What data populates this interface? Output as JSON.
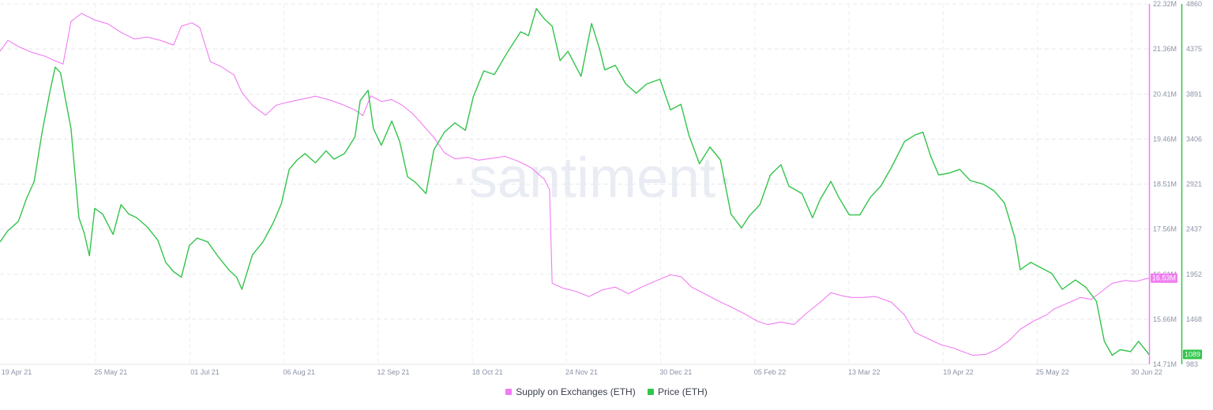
{
  "chart_data": {
    "type": "line",
    "title": "",
    "watermark": "·santiment·",
    "x_tick_labels": [
      "19 Apr 21",
      "25 May 21",
      "01 Jul 21",
      "06 Aug 21",
      "12 Sep 21",
      "18 Oct 21",
      "24 Nov 21",
      "30 Dec 21",
      "05 Feb 22",
      "13 Mar 22",
      "19 Apr 22",
      "25 May 22",
      "30 Jun 22"
    ],
    "x_range": [
      "2021-04-19",
      "2022-06-30"
    ],
    "axes": {
      "left_supply": {
        "series": "Supply on Exchanges (ETH)",
        "tick_labels": [
          "22.32M",
          "21.36M",
          "20.41M",
          "19.46M",
          "18.51M",
          "17.56M",
          "16.61M",
          "15.66M",
          "14.71M"
        ],
        "range": [
          14.71,
          22.32
        ],
        "unit": "M",
        "current_value_label": "16.53M",
        "color": "#f17cf1"
      },
      "right_price": {
        "series": "Price (ETH)",
        "tick_labels": [
          "4860",
          "4375",
          "3891",
          "3406",
          "2921",
          "2437",
          "1952",
          "1468",
          "983"
        ],
        "range": [
          983,
          4860
        ],
        "current_value_label": "1089",
        "color": "#33c44a"
      }
    },
    "series": [
      {
        "name": "Supply on Exchanges (ETH)",
        "color": "#f17cf1",
        "axis": "left",
        "points": [
          [
            "2021-04-19",
            21.32
          ],
          [
            "2021-04-22",
            21.55
          ],
          [
            "2021-04-26",
            21.42
          ],
          [
            "2021-05-01",
            21.3
          ],
          [
            "2021-05-06",
            21.22
          ],
          [
            "2021-05-10",
            21.12
          ],
          [
            "2021-05-13",
            21.05
          ],
          [
            "2021-05-16",
            21.95
          ],
          [
            "2021-05-20",
            22.12
          ],
          [
            "2021-05-25",
            21.98
          ],
          [
            "2021-05-30",
            21.9
          ],
          [
            "2021-06-04",
            21.72
          ],
          [
            "2021-06-09",
            21.58
          ],
          [
            "2021-06-14",
            21.62
          ],
          [
            "2021-06-19",
            21.55
          ],
          [
            "2021-06-24",
            21.45
          ],
          [
            "2021-06-27",
            21.85
          ],
          [
            "2021-07-01",
            21.92
          ],
          [
            "2021-07-04",
            21.82
          ],
          [
            "2021-07-08",
            21.1
          ],
          [
            "2021-07-12",
            21.0
          ],
          [
            "2021-07-17",
            20.82
          ],
          [
            "2021-07-20",
            20.45
          ],
          [
            "2021-07-24",
            20.18
          ],
          [
            "2021-07-29",
            19.97
          ],
          [
            "2021-08-02",
            20.18
          ],
          [
            "2021-08-06",
            20.24
          ],
          [
            "2021-08-11",
            20.3
          ],
          [
            "2021-08-17",
            20.37
          ],
          [
            "2021-08-22",
            20.3
          ],
          [
            "2021-08-27",
            20.2
          ],
          [
            "2021-09-01",
            20.08
          ],
          [
            "2021-09-04",
            19.96
          ],
          [
            "2021-09-07",
            20.38
          ],
          [
            "2021-09-11",
            20.26
          ],
          [
            "2021-09-15",
            20.3
          ],
          [
            "2021-09-19",
            20.18
          ],
          [
            "2021-09-23",
            20.0
          ],
          [
            "2021-09-27",
            19.75
          ],
          [
            "2021-10-01",
            19.5
          ],
          [
            "2021-10-05",
            19.18
          ],
          [
            "2021-10-09",
            19.05
          ],
          [
            "2021-10-14",
            19.08
          ],
          [
            "2021-10-18",
            19.02
          ],
          [
            "2021-10-23",
            19.06
          ],
          [
            "2021-10-28",
            19.1
          ],
          [
            "2021-11-02",
            19.0
          ],
          [
            "2021-11-07",
            18.86
          ],
          [
            "2021-11-12",
            18.62
          ],
          [
            "2021-11-14",
            18.4
          ],
          [
            "2021-11-15",
            16.42
          ],
          [
            "2021-11-19",
            16.32
          ],
          [
            "2021-11-24",
            16.25
          ],
          [
            "2021-11-29",
            16.14
          ],
          [
            "2021-12-04",
            16.28
          ],
          [
            "2021-12-09",
            16.34
          ],
          [
            "2021-12-14",
            16.2
          ],
          [
            "2021-12-19",
            16.34
          ],
          [
            "2021-12-24",
            16.46
          ],
          [
            "2021-12-30",
            16.6
          ],
          [
            "2022-01-03",
            16.56
          ],
          [
            "2022-01-07",
            16.34
          ],
          [
            "2022-01-12",
            16.2
          ],
          [
            "2022-01-17",
            16.05
          ],
          [
            "2022-01-22",
            15.92
          ],
          [
            "2022-01-27",
            15.78
          ],
          [
            "2022-02-01",
            15.62
          ],
          [
            "2022-02-05",
            15.55
          ],
          [
            "2022-02-10",
            15.6
          ],
          [
            "2022-02-15",
            15.55
          ],
          [
            "2022-02-20",
            15.8
          ],
          [
            "2022-02-25",
            16.02
          ],
          [
            "2022-03-01",
            16.22
          ],
          [
            "2022-03-05",
            16.16
          ],
          [
            "2022-03-09",
            16.12
          ],
          [
            "2022-03-13",
            16.12
          ],
          [
            "2022-03-18",
            16.14
          ],
          [
            "2022-03-24",
            16.02
          ],
          [
            "2022-03-29",
            15.75
          ],
          [
            "2022-04-02",
            15.38
          ],
          [
            "2022-04-07",
            15.25
          ],
          [
            "2022-04-12",
            15.12
          ],
          [
            "2022-04-17",
            15.05
          ],
          [
            "2022-04-19",
            15.0
          ],
          [
            "2022-04-24",
            14.9
          ],
          [
            "2022-04-29",
            14.92
          ],
          [
            "2022-05-03",
            15.02
          ],
          [
            "2022-05-08",
            15.22
          ],
          [
            "2022-05-12",
            15.45
          ],
          [
            "2022-05-17",
            15.62
          ],
          [
            "2022-05-22",
            15.75
          ],
          [
            "2022-05-25",
            15.88
          ],
          [
            "2022-05-30",
            16.0
          ],
          [
            "2022-06-04",
            16.12
          ],
          [
            "2022-06-08",
            16.08
          ],
          [
            "2022-06-12",
            16.25
          ],
          [
            "2022-06-16",
            16.42
          ],
          [
            "2022-06-21",
            16.48
          ],
          [
            "2022-06-25",
            16.46
          ],
          [
            "2022-06-30",
            16.53
          ]
        ]
      },
      {
        "name": "Price (ETH)",
        "color": "#33c44a",
        "axis": "right",
        "points": [
          [
            "2021-04-19",
            2300
          ],
          [
            "2021-04-22",
            2420
          ],
          [
            "2021-04-26",
            2520
          ],
          [
            "2021-04-29",
            2760
          ],
          [
            "2021-05-02",
            2950
          ],
          [
            "2021-05-05",
            3480
          ],
          [
            "2021-05-08",
            3920
          ],
          [
            "2021-05-10",
            4180
          ],
          [
            "2021-05-12",
            4120
          ],
          [
            "2021-05-14",
            3820
          ],
          [
            "2021-05-16",
            3520
          ],
          [
            "2021-05-19",
            2560
          ],
          [
            "2021-05-21",
            2400
          ],
          [
            "2021-05-23",
            2150
          ],
          [
            "2021-05-25",
            2660
          ],
          [
            "2021-05-28",
            2600
          ],
          [
            "2021-06-01",
            2380
          ],
          [
            "2021-06-04",
            2700
          ],
          [
            "2021-06-07",
            2600
          ],
          [
            "2021-06-10",
            2560
          ],
          [
            "2021-06-14",
            2460
          ],
          [
            "2021-06-18",
            2320
          ],
          [
            "2021-06-21",
            2080
          ],
          [
            "2021-06-24",
            1980
          ],
          [
            "2021-06-27",
            1920
          ],
          [
            "2021-06-30",
            2260
          ],
          [
            "2021-07-03",
            2340
          ],
          [
            "2021-07-07",
            2300
          ],
          [
            "2021-07-11",
            2140
          ],
          [
            "2021-07-15",
            2000
          ],
          [
            "2021-07-18",
            1920
          ],
          [
            "2021-07-20",
            1790
          ],
          [
            "2021-07-24",
            2160
          ],
          [
            "2021-07-28",
            2300
          ],
          [
            "2021-08-01",
            2510
          ],
          [
            "2021-08-04",
            2710
          ],
          [
            "2021-08-07",
            3080
          ],
          [
            "2021-08-10",
            3180
          ],
          [
            "2021-08-13",
            3250
          ],
          [
            "2021-08-17",
            3150
          ],
          [
            "2021-08-21",
            3280
          ],
          [
            "2021-08-24",
            3190
          ],
          [
            "2021-08-28",
            3250
          ],
          [
            "2021-09-01",
            3430
          ],
          [
            "2021-09-03",
            3820
          ],
          [
            "2021-09-06",
            3930
          ],
          [
            "2021-09-08",
            3520
          ],
          [
            "2021-09-11",
            3340
          ],
          [
            "2021-09-15",
            3600
          ],
          [
            "2021-09-18",
            3380
          ],
          [
            "2021-09-21",
            3000
          ],
          [
            "2021-09-24",
            2940
          ],
          [
            "2021-09-28",
            2820
          ],
          [
            "2021-10-01",
            3290
          ],
          [
            "2021-10-05",
            3480
          ],
          [
            "2021-10-09",
            3580
          ],
          [
            "2021-10-13",
            3500
          ],
          [
            "2021-10-16",
            3860
          ],
          [
            "2021-10-20",
            4140
          ],
          [
            "2021-10-24",
            4100
          ],
          [
            "2021-10-29",
            4340
          ],
          [
            "2021-11-03",
            4560
          ],
          [
            "2021-11-06",
            4520
          ],
          [
            "2021-11-09",
            4810
          ],
          [
            "2021-11-12",
            4700
          ],
          [
            "2021-11-15",
            4620
          ],
          [
            "2021-11-18",
            4250
          ],
          [
            "2021-11-21",
            4350
          ],
          [
            "2021-11-26",
            4080
          ],
          [
            "2021-11-30",
            4650
          ],
          [
            "2021-12-03",
            4380
          ],
          [
            "2021-12-05",
            4150
          ],
          [
            "2021-12-09",
            4200
          ],
          [
            "2021-12-13",
            4000
          ],
          [
            "2021-12-17",
            3900
          ],
          [
            "2021-12-21",
            4000
          ],
          [
            "2021-12-26",
            4050
          ],
          [
            "2021-12-30",
            3720
          ],
          [
            "2022-01-03",
            3780
          ],
          [
            "2022-01-06",
            3450
          ],
          [
            "2022-01-10",
            3140
          ],
          [
            "2022-01-14",
            3320
          ],
          [
            "2022-01-18",
            3180
          ],
          [
            "2022-01-22",
            2600
          ],
          [
            "2022-01-26",
            2450
          ],
          [
            "2022-01-29",
            2580
          ],
          [
            "2022-02-02",
            2700
          ],
          [
            "2022-02-06",
            3020
          ],
          [
            "2022-02-10",
            3130
          ],
          [
            "2022-02-13",
            2900
          ],
          [
            "2022-02-18",
            2820
          ],
          [
            "2022-02-22",
            2560
          ],
          [
            "2022-02-25",
            2760
          ],
          [
            "2022-03-01",
            2950
          ],
          [
            "2022-03-04",
            2780
          ],
          [
            "2022-03-08",
            2590
          ],
          [
            "2022-03-12",
            2590
          ],
          [
            "2022-03-16",
            2780
          ],
          [
            "2022-03-20",
            2900
          ],
          [
            "2022-03-24",
            3100
          ],
          [
            "2022-03-29",
            3380
          ],
          [
            "2022-04-02",
            3450
          ],
          [
            "2022-04-05",
            3480
          ],
          [
            "2022-04-08",
            3220
          ],
          [
            "2022-04-11",
            3020
          ],
          [
            "2022-04-15",
            3040
          ],
          [
            "2022-04-19",
            3080
          ],
          [
            "2022-04-23",
            2960
          ],
          [
            "2022-04-28",
            2920
          ],
          [
            "2022-05-02",
            2850
          ],
          [
            "2022-05-06",
            2720
          ],
          [
            "2022-05-10",
            2340
          ],
          [
            "2022-05-12",
            2000
          ],
          [
            "2022-05-16",
            2080
          ],
          [
            "2022-05-20",
            2020
          ],
          [
            "2022-05-24",
            1960
          ],
          [
            "2022-05-28",
            1790
          ],
          [
            "2022-06-02",
            1890
          ],
          [
            "2022-06-06",
            1810
          ],
          [
            "2022-06-10",
            1660
          ],
          [
            "2022-06-13",
            1230
          ],
          [
            "2022-06-16",
            1080
          ],
          [
            "2022-06-19",
            1140
          ],
          [
            "2022-06-23",
            1120
          ],
          [
            "2022-06-26",
            1230
          ],
          [
            "2022-06-30",
            1089
          ]
        ]
      }
    ],
    "legend": [
      {
        "label": "Supply on Exchanges (ETH)",
        "color": "#f17cf1"
      },
      {
        "label": "Price (ETH)",
        "color": "#33c44a"
      }
    ],
    "legend_position": "bottom-center",
    "grid": true
  }
}
